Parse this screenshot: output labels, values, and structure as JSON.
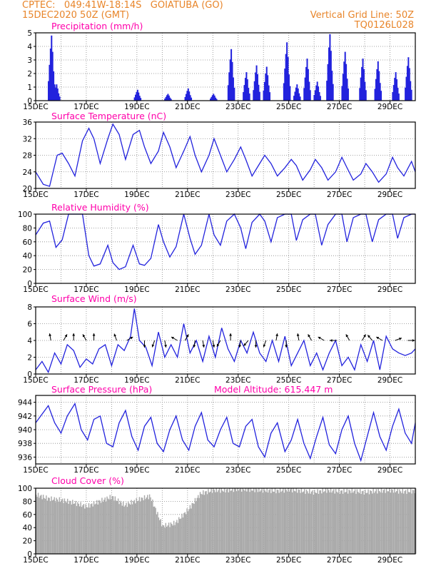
{
  "header": {
    "line1_left": "CPTEC:   049:41W-18:14S   GOIATUBA (GO)",
    "line2_left": "15DEC2020 50Z (GMT)",
    "line1_right": "Vertical Grid Line: 50Z",
    "line2_right": "TQ0126L028"
  },
  "colors": {
    "header": "#e8852a",
    "title": "#ff00aa",
    "series": "#2222dd",
    "grid": "#888888",
    "cloud": "#a9a9a9"
  },
  "chart_data": [
    {
      "type": "bar",
      "title": "Precipitation (mm/h)",
      "ylim": [
        0,
        5
      ],
      "yticks": [
        "0",
        "1",
        "2",
        "3",
        "4",
        "5"
      ],
      "xticks": [
        "15DEC",
        "17DEC",
        "19DEC",
        "21DEC",
        "23DEC",
        "25DEC",
        "27DEC",
        "29DEC"
      ],
      "x_range_days": [
        0,
        15
      ],
      "peaks": [
        {
          "day": 0.6,
          "value": 4.8
        },
        {
          "day": 0.8,
          "value": 1.2
        },
        {
          "day": 4.0,
          "value": 0.8
        },
        {
          "day": 5.2,
          "value": 0.5
        },
        {
          "day": 6.0,
          "value": 0.9
        },
        {
          "day": 7.0,
          "value": 0.5
        },
        {
          "day": 7.7,
          "value": 3.8
        },
        {
          "day": 8.3,
          "value": 2.1
        },
        {
          "day": 8.7,
          "value": 2.6
        },
        {
          "day": 9.1,
          "value": 2.5
        },
        {
          "day": 9.9,
          "value": 4.3
        },
        {
          "day": 10.3,
          "value": 1.2
        },
        {
          "day": 10.7,
          "value": 3.1
        },
        {
          "day": 11.1,
          "value": 1.4
        },
        {
          "day": 11.6,
          "value": 4.9
        },
        {
          "day": 12.2,
          "value": 3.6
        },
        {
          "day": 12.9,
          "value": 3.1
        },
        {
          "day": 13.5,
          "value": 2.9
        },
        {
          "day": 14.2,
          "value": 2.1
        },
        {
          "day": 14.7,
          "value": 3.2
        }
      ]
    },
    {
      "type": "line",
      "title": "Surface Temperature (nC)",
      "ylim": [
        20,
        36
      ],
      "yticks": [
        "20",
        "24",
        "28",
        "32",
        "36"
      ],
      "xticks": [
        "15DEC",
        "17DEC",
        "19DEC",
        "21DEC",
        "23DEC",
        "25DEC",
        "27DEC",
        "29DEC"
      ],
      "x_range_days": [
        0,
        15
      ],
      "x_days": [
        0,
        0.3,
        0.55,
        0.85,
        1.05,
        1.3,
        1.55,
        1.85,
        2.1,
        2.3,
        2.55,
        2.85,
        3.05,
        3.3,
        3.55,
        3.85,
        4.1,
        4.3,
        4.55,
        4.85,
        5.05,
        5.3,
        5.55,
        5.85,
        6.1,
        6.3,
        6.55,
        6.85,
        7.05,
        7.3,
        7.55,
        7.85,
        8.1,
        8.3,
        8.55,
        8.85,
        9.05,
        9.3,
        9.55,
        9.85,
        10.1,
        10.3,
        10.55,
        10.85,
        11.05,
        11.3,
        11.55,
        11.85,
        12.1,
        12.3,
        12.55,
        12.85,
        13.05,
        13.3,
        13.55,
        13.85,
        14.1,
        14.3,
        14.55,
        14.85,
        15
      ],
      "values": [
        24,
        21,
        20.5,
        28,
        28.5,
        26,
        23,
        31.5,
        34.5,
        32,
        26,
        32,
        35.5,
        33,
        27,
        33,
        34,
        30,
        26,
        29,
        33.5,
        30,
        25,
        29,
        32.5,
        28,
        24,
        28,
        32,
        28,
        24,
        27,
        30,
        27,
        23,
        26,
        28,
        26,
        23,
        25,
        27,
        25.5,
        22,
        24.5,
        27,
        25,
        22,
        24,
        27.5,
        25,
        22,
        23.5,
        26,
        24,
        21.5,
        23.5,
        27.5,
        25,
        23,
        26.5,
        24
      ]
    },
    {
      "type": "line",
      "title": "Relative Humidity (%)",
      "ylim": [
        0,
        100
      ],
      "yticks": [
        "0",
        "20",
        "40",
        "60",
        "80",
        "100"
      ],
      "xticks": [
        "15DEC",
        "17DEC",
        "19DEC",
        "21DEC",
        "23DEC",
        "25DEC",
        "27DEC",
        "29DEC"
      ],
      "x_range_days": [
        0,
        15
      ],
      "x_days": [
        0,
        0.3,
        0.55,
        0.8,
        1.05,
        1.3,
        1.55,
        1.85,
        2.1,
        2.3,
        2.55,
        2.85,
        3.05,
        3.3,
        3.55,
        3.85,
        4.1,
        4.3,
        4.55,
        4.85,
        5.05,
        5.3,
        5.55,
        5.85,
        6.1,
        6.3,
        6.55,
        6.85,
        7.05,
        7.3,
        7.55,
        7.85,
        8.1,
        8.3,
        8.55,
        8.85,
        9.05,
        9.3,
        9.55,
        9.85,
        10.1,
        10.3,
        10.55,
        10.85,
        11.05,
        11.3,
        11.55,
        11.85,
        12.1,
        12.3,
        12.55,
        12.85,
        13.05,
        13.3,
        13.55,
        13.85,
        14.1,
        14.3,
        14.55,
        14.85,
        15
      ],
      "values": [
        70,
        87,
        90,
        52,
        63,
        100,
        100,
        100,
        40,
        25,
        28,
        55,
        30,
        20,
        24,
        55,
        28,
        26,
        36,
        85,
        60,
        38,
        53,
        100,
        65,
        42,
        55,
        100,
        70,
        55,
        90,
        100,
        80,
        50,
        88,
        100,
        90,
        60,
        95,
        100,
        100,
        62,
        92,
        100,
        100,
        55,
        85,
        100,
        100,
        60,
        95,
        100,
        100,
        60,
        92,
        100,
        100,
        65,
        95,
        100,
        100
      ]
    },
    {
      "type": "line",
      "title": "Surface Wind (m/s)",
      "ylim": [
        0,
        8
      ],
      "yticks": [
        "0",
        "2",
        "4",
        "6",
        "8"
      ],
      "xticks": [
        "15DEC",
        "17DEC",
        "19DEC",
        "21DEC",
        "23DEC",
        "25DEC",
        "27DEC",
        "29DEC"
      ],
      "x_range_days": [
        0,
        15
      ],
      "x_days": [
        0,
        0.25,
        0.5,
        0.75,
        1.0,
        1.25,
        1.5,
        1.75,
        2.0,
        2.25,
        2.5,
        2.75,
        3.0,
        3.25,
        3.5,
        3.75,
        3.9,
        4.1,
        4.35,
        4.6,
        4.85,
        5.1,
        5.35,
        5.6,
        5.85,
        6.1,
        6.35,
        6.6,
        6.85,
        7.1,
        7.35,
        7.6,
        7.85,
        8.1,
        8.35,
        8.6,
        8.85,
        9.1,
        9.35,
        9.6,
        9.85,
        10.1,
        10.35,
        10.6,
        10.85,
        11.1,
        11.35,
        11.6,
        11.85,
        12.1,
        12.35,
        12.6,
        12.85,
        13.1,
        13.35,
        13.6,
        13.85,
        14.1,
        14.35,
        14.6,
        14.85,
        15
      ],
      "values": [
        0.5,
        1.5,
        0.2,
        2.5,
        1.2,
        3.5,
        2.8,
        0.8,
        1.8,
        1.2,
        3,
        3.5,
        1,
        3.5,
        2.8,
        4.5,
        7.8,
        4,
        3.2,
        1,
        5,
        2,
        3.5,
        2,
        6,
        2.5,
        4,
        1.5,
        4.5,
        2,
        5.5,
        3,
        1.5,
        4,
        2.5,
        5,
        2.5,
        1.5,
        4,
        1.5,
        4.5,
        1,
        2.5,
        4,
        1,
        2.5,
        0.5,
        2.5,
        4,
        1,
        2,
        0.5,
        3.5,
        1.5,
        4,
        0.5,
        4.5,
        3,
        2.5,
        2.2,
        2.5,
        3
      ],
      "arrow_days": [
        0.6,
        1.1,
        1.5,
        2.0,
        2.3,
        3.2,
        3.6,
        4.3,
        4.7,
        5.1,
        5.6,
        5.9,
        6.3,
        6.6,
        7.0,
        7.3,
        7.7,
        8.1,
        8.4,
        8.7,
        9.1,
        9.5,
        9.9,
        10.4,
        10.9,
        11.4,
        11.9,
        12.4,
        12.9,
        13.3,
        13.7,
        14.2,
        14.7
      ],
      "arrow_angles_deg": [
        -100,
        -60,
        -90,
        -120,
        -90,
        -110,
        -30,
        90,
        110,
        80,
        -150,
        -60,
        100,
        80,
        80,
        120,
        -90,
        100,
        130,
        90,
        110,
        -80,
        90,
        -100,
        -120,
        -150,
        180,
        -120,
        -60,
        -130,
        -150,
        -20,
        0
      ]
    },
    {
      "type": "line",
      "title": "Surface Pressure (hPa)",
      "annotation": "Model Altitude: 615.447  m",
      "ylim": [
        935,
        945
      ],
      "yticks": [
        "936",
        "938",
        "940",
        "942",
        "944"
      ],
      "xticks": [
        "15DEC",
        "17DEC",
        "19DEC",
        "21DEC",
        "23DEC",
        "25DEC",
        "27DEC",
        "29DEC"
      ],
      "x_range_days": [
        0,
        15
      ],
      "x_days": [
        0,
        0.3,
        0.5,
        0.75,
        1.0,
        1.25,
        1.55,
        1.8,
        2.05,
        2.3,
        2.55,
        2.8,
        3.05,
        3.3,
        3.55,
        3.8,
        4.05,
        4.3,
        4.55,
        4.8,
        5.05,
        5.3,
        5.55,
        5.8,
        6.05,
        6.3,
        6.55,
        6.8,
        7.05,
        7.3,
        7.55,
        7.8,
        8.05,
        8.3,
        8.55,
        8.8,
        9.05,
        9.3,
        9.55,
        9.85,
        10.1,
        10.35,
        10.6,
        10.85,
        11.1,
        11.35,
        11.6,
        11.85,
        12.1,
        12.35,
        12.6,
        12.85,
        13.1,
        13.35,
        13.6,
        13.85,
        14.1,
        14.35,
        14.6,
        14.85,
        15
      ],
      "values": [
        941,
        942.5,
        943.5,
        941,
        939.5,
        942,
        943.8,
        940,
        938.5,
        941.5,
        942,
        938,
        937.5,
        941,
        942.8,
        939,
        937,
        940.5,
        941.8,
        938,
        936.8,
        940,
        942,
        938.5,
        937,
        940.5,
        942.5,
        938.5,
        937.5,
        940,
        941.8,
        938,
        937.5,
        940.5,
        941.5,
        937.5,
        936,
        939.5,
        941,
        936.8,
        938.5,
        941.5,
        938,
        935.8,
        939,
        941.8,
        937.8,
        936.5,
        940,
        942,
        938,
        935.5,
        939,
        942.5,
        939,
        937,
        940.5,
        943,
        939.5,
        938,
        941
      ]
    },
    {
      "type": "area",
      "title": "Cloud Cover (%)",
      "ylim": [
        0,
        100
      ],
      "yticks": [
        "0",
        "20",
        "40",
        "60",
        "80",
        "100"
      ],
      "xticks": [
        "15DEC",
        "17DEC",
        "19DEC",
        "21DEC",
        "23DEC",
        "25DEC",
        "27DEC",
        "29DEC"
      ],
      "x_range_days": [
        0,
        15
      ],
      "x_days": [
        0,
        0.5,
        1.0,
        1.5,
        2.0,
        2.5,
        3.0,
        3.5,
        4.0,
        4.5,
        5.0,
        5.5,
        6.0,
        6.5,
        7.0,
        7.5,
        8.0,
        8.5,
        9.0,
        9.5,
        10.0,
        10.5,
        11.0,
        11.5,
        12.0,
        12.5,
        13.0,
        13.5,
        14.0,
        14.5,
        15.0
      ],
      "values": [
        88,
        82,
        80,
        76,
        70,
        78,
        85,
        72,
        80,
        86,
        40,
        45,
        65,
        90,
        95,
        95,
        97,
        96,
        95,
        94,
        96,
        94,
        92,
        95,
        93,
        94,
        92,
        94,
        95,
        93,
        94
      ]
    }
  ]
}
